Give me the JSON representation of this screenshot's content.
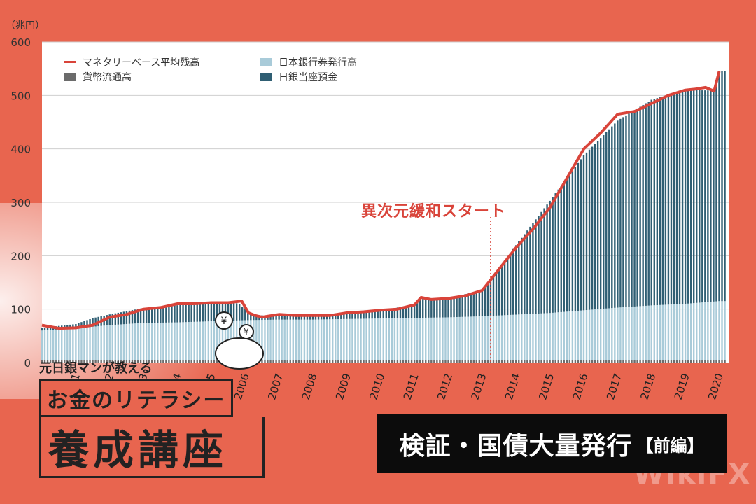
{
  "chart_data": {
    "type": "bar",
    "unit_label": "（兆円）",
    "y_ticks": [
      "600",
      "500",
      "400",
      "300",
      "200",
      "100",
      "0"
    ],
    "ylim": [
      0,
      600
    ],
    "grid": true,
    "legend_position": "top-left",
    "years": [
      "2001",
      "2002",
      "2003",
      "2004",
      "2005",
      "2006",
      "2007",
      "2008",
      "2009",
      "2010",
      "2011",
      "2012",
      "2013",
      "2014",
      "2015",
      "2016",
      "2017",
      "2018",
      "2019",
      "2020"
    ],
    "series": [
      {
        "name": "マネタリーベース平均残高",
        "kind": "line",
        "color": "#d9443a",
        "x": [
          2000.0,
          2000.5,
          2001.0,
          2001.5,
          2002.0,
          2002.5,
          2003.0,
          2003.5,
          2004.0,
          2004.5,
          2005.0,
          2005.5,
          2005.9,
          2006.1,
          2006.3,
          2006.5,
          2007.0,
          2007.5,
          2008.0,
          2008.5,
          2009.0,
          2009.5,
          2010.0,
          2010.5,
          2011.0,
          2011.2,
          2011.5,
          2012.0,
          2012.5,
          2013.0,
          2013.25,
          2013.5,
          2014.0,
          2014.5,
          2015.0,
          2015.5,
          2016.0,
          2016.5,
          2017.0,
          2017.5,
          2018.0,
          2018.5,
          2019.0,
          2019.3,
          2019.6,
          2019.85,
          2020.0
        ],
        "y": [
          70,
          64,
          65,
          70,
          85,
          90,
          100,
          103,
          110,
          110,
          112,
          112,
          115,
          93,
          88,
          85,
          90,
          88,
          88,
          88,
          93,
          95,
          98,
          100,
          108,
          122,
          118,
          120,
          125,
          135,
          155,
          175,
          215,
          250,
          290,
          345,
          400,
          430,
          465,
          470,
          485,
          500,
          510,
          512,
          515,
          508,
          545
        ]
      },
      {
        "name": "日本銀行券発行高",
        "kind": "bar",
        "color": "#a9cbd9",
        "x": [
          2000.0,
          2001.0,
          2002.0,
          2003.0,
          2004.0,
          2005.0,
          2006.0,
          2007.0,
          2008.0,
          2009.0,
          2010.0,
          2011.0,
          2012.0,
          2013.0,
          2014.0,
          2015.0,
          2016.0,
          2017.0,
          2018.0,
          2019.0,
          2020.0
        ],
        "y": [
          56,
          60,
          66,
          70,
          71,
          73,
          75,
          76,
          76,
          77,
          78,
          79,
          80,
          82,
          85,
          88,
          93,
          98,
          102,
          105,
          110
        ]
      },
      {
        "name": "貨幣流通高",
        "kind": "bar",
        "color": "#6b6b6b",
        "x": [
          2000.0,
          2010.0,
          2020.0
        ],
        "y": [
          4,
          4.5,
          5
        ]
      },
      {
        "name": "日銀当座預金",
        "kind": "bar",
        "color": "#2f5e73",
        "x": [
          2000.0,
          2001.0,
          2001.5,
          2002.0,
          2003.0,
          2004.0,
          2005.0,
          2005.8,
          2006.2,
          2006.6,
          2007.0,
          2008.0,
          2009.0,
          2010.0,
          2011.0,
          2011.2,
          2012.0,
          2013.0,
          2013.25,
          2014.0,
          2015.0,
          2016.0,
          2017.0,
          2018.0,
          2019.0,
          2019.85,
          2020.0
        ],
        "y": [
          5,
          8,
          16,
          20,
          28,
          32,
          33,
          32,
          10,
          8,
          8,
          6,
          10,
          15,
          25,
          35,
          35,
          50,
          68,
          130,
          210,
          290,
          350,
          385,
          400,
          395,
          430
        ]
      }
    ],
    "annotation": {
      "text": "異次元緩和スタート",
      "x": 2013.25
    }
  },
  "brand": {
    "sub": "元日銀マンが教える",
    "mid": "お金のリテラシー",
    "big": "養成講座"
  },
  "banner": {
    "title": "検証・国債大量発行",
    "suffix": "【前編】"
  },
  "watermark": "WikiFX"
}
